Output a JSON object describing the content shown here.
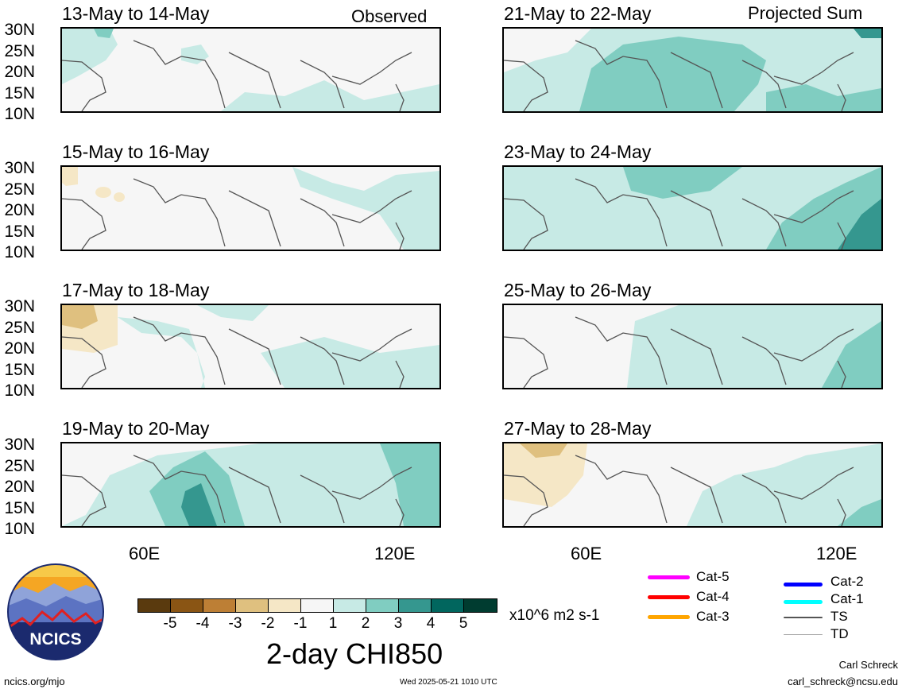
{
  "panels": [
    {
      "title": "13-May to 14-May",
      "tag": "Observed"
    },
    {
      "title": "21-May to 22-May",
      "tag": "Projected Sum"
    },
    {
      "title": "15-May to 16-May",
      "tag": ""
    },
    {
      "title": "23-May to 24-May",
      "tag": ""
    },
    {
      "title": "17-May to 18-May",
      "tag": ""
    },
    {
      "title": "25-May to 26-May",
      "tag": ""
    },
    {
      "title": "19-May to 20-May",
      "tag": ""
    },
    {
      "title": "27-May to 28-May",
      "tag": ""
    }
  ],
  "lat_labels": [
    "30N",
    "25N",
    "20N",
    "15N",
    "10N"
  ],
  "lon_labels": [
    "60E",
    "120E"
  ],
  "colorbar": {
    "colors": [
      "#5a3a0e",
      "#8a5514",
      "#bd7f35",
      "#dfc07f",
      "#f5e7c6",
      "#f6f6f6",
      "#c7eae5",
      "#80cdc1",
      "#35978f",
      "#01665e",
      "#003c30"
    ],
    "tick_labels": [
      "-5",
      "-4",
      "-3",
      "-2",
      "-1",
      "1",
      "2",
      "3",
      "4",
      "5"
    ],
    "units": "x10^6 m2 s-1",
    "title": "2-day CHI850"
  },
  "legend": [
    {
      "label": "Cat-5",
      "color": "#ff00ff"
    },
    {
      "label": "Cat-4",
      "color": "#ff0000"
    },
    {
      "label": "Cat-3",
      "color": "#ffa500"
    },
    {
      "label": "Cat-2",
      "color": "#0000ff"
    },
    {
      "label": "Cat-1",
      "color": "#00ffff"
    },
    {
      "label": "TS",
      "color": "#555555"
    },
    {
      "label": "TD",
      "color": "#aaaaaa"
    }
  ],
  "logo": {
    "text": "NCICS"
  },
  "footer": {
    "site": "ncics.org/mjo",
    "timestamp": "Wed 2025-05-21 1010 UTC",
    "author": "Carl Schreck",
    "email": "carl_schreck@ncsu.edu"
  }
}
